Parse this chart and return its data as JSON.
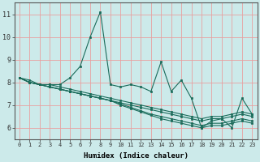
{
  "xlabel": "Humidex (Indice chaleur)",
  "background_color": "#cceaea",
  "grid_color_major": "#e8a0a0",
  "grid_color_minor": "#e8a0a0",
  "line_color": "#1a6b5a",
  "xlim": [
    -0.5,
    23.5
  ],
  "ylim": [
    5.5,
    11.5
  ],
  "xticks": [
    0,
    1,
    2,
    3,
    4,
    5,
    6,
    7,
    8,
    9,
    10,
    11,
    12,
    13,
    14,
    15,
    16,
    17,
    18,
    19,
    20,
    21,
    22,
    23
  ],
  "yticks": [
    6,
    7,
    8,
    9,
    10,
    11
  ],
  "series": [
    [
      8.2,
      8.1,
      7.9,
      7.9,
      7.9,
      8.2,
      8.7,
      10.0,
      11.1,
      7.9,
      7.8,
      7.9,
      7.8,
      7.6,
      8.9,
      7.6,
      8.1,
      7.3,
      6.0,
      6.3,
      6.4,
      6.0,
      7.3,
      6.6
    ],
    [
      8.2,
      8.0,
      7.9,
      7.9,
      7.8,
      7.7,
      7.6,
      7.5,
      7.4,
      7.3,
      7.2,
      7.1,
      7.0,
      6.9,
      6.8,
      6.7,
      6.6,
      6.5,
      6.4,
      6.5,
      6.5,
      6.6,
      6.7,
      6.6
    ],
    [
      8.2,
      8.0,
      7.9,
      7.8,
      7.7,
      7.6,
      7.5,
      7.4,
      7.3,
      7.2,
      7.1,
      7.0,
      6.9,
      6.8,
      6.7,
      6.6,
      6.5,
      6.4,
      6.3,
      6.4,
      6.4,
      6.5,
      6.6,
      6.5
    ],
    [
      8.2,
      8.0,
      7.9,
      7.8,
      7.7,
      7.6,
      7.5,
      7.4,
      7.3,
      7.2,
      7.05,
      6.9,
      6.75,
      6.6,
      6.5,
      6.4,
      6.3,
      6.2,
      6.1,
      6.2,
      6.2,
      6.3,
      6.4,
      6.3
    ],
    [
      8.2,
      8.0,
      7.9,
      7.8,
      7.7,
      7.6,
      7.5,
      7.4,
      7.3,
      7.2,
      7.0,
      6.85,
      6.7,
      6.55,
      6.4,
      6.3,
      6.2,
      6.1,
      6.0,
      6.1,
      6.1,
      6.2,
      6.3,
      6.2
    ]
  ]
}
